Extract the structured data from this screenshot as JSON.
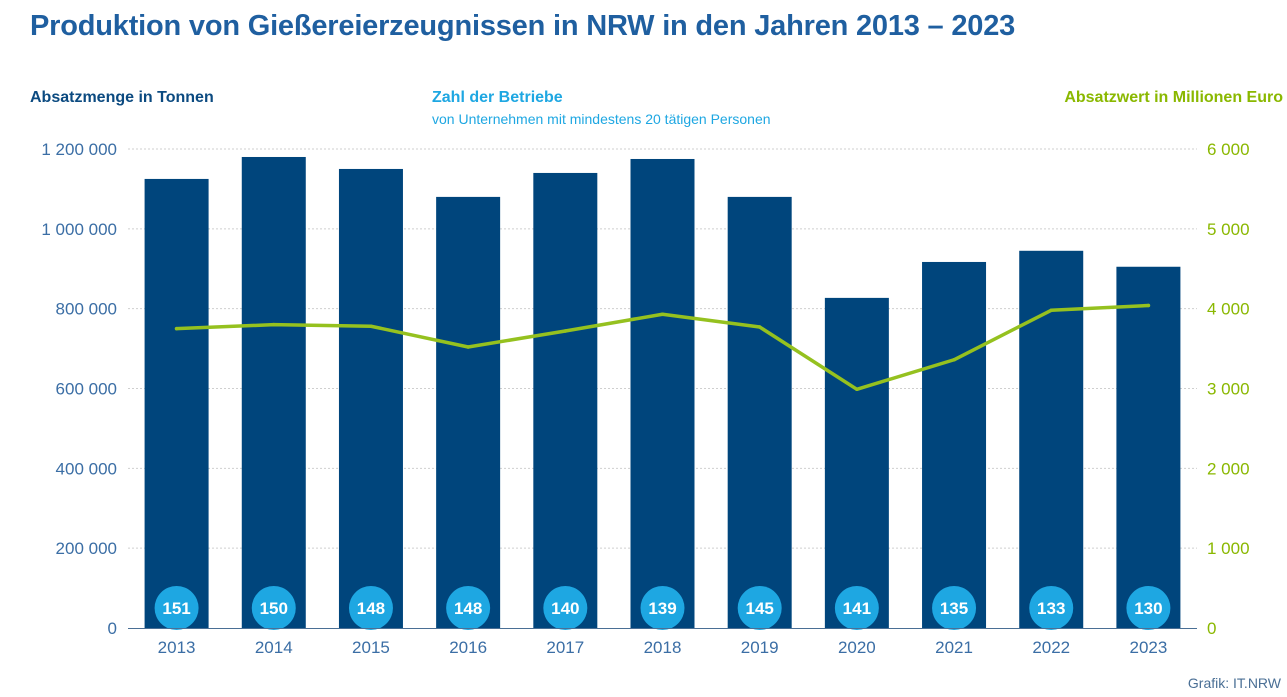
{
  "title": "Produktion von Gießereierzeugnissen in NRW in den Jahren 2013 – 2023",
  "legend": {
    "left": "Absatzmenge in Tonnen",
    "middle": "Zahl der Betriebe",
    "middle_sub": "von Unternehmen mit mindestens 20 tätigen Personen",
    "right": "Absatzwert in Millionen Euro"
  },
  "credit": "Grafik: IT.NRW",
  "colors": {
    "bar": "#00457c",
    "line": "#95c11f",
    "badge": "#1ea7e2",
    "grid": "#cfcfcf"
  },
  "chart_data": {
    "type": "bar",
    "categories": [
      "2013",
      "2014",
      "2015",
      "2016",
      "2017",
      "2018",
      "2019",
      "2020",
      "2021",
      "2022",
      "2023"
    ],
    "series": [
      {
        "name": "Absatzmenge in Tonnen",
        "type": "bar",
        "axis": "left",
        "values": [
          1125000,
          1180000,
          1150000,
          1080000,
          1140000,
          1175000,
          1080000,
          827000,
          917000,
          945000,
          905000
        ]
      },
      {
        "name": "Absatzwert in Millionen Euro",
        "type": "line",
        "axis": "right",
        "values": [
          3750,
          3800,
          3780,
          3520,
          3720,
          3930,
          3770,
          2990,
          3360,
          3980,
          4040
        ]
      },
      {
        "name": "Zahl der Betriebe",
        "type": "label",
        "values": [
          151,
          150,
          148,
          148,
          140,
          139,
          145,
          141,
          135,
          133,
          130
        ]
      }
    ],
    "y_left": {
      "ylim": [
        0,
        1200000
      ],
      "ticks": [
        0,
        200000,
        400000,
        600000,
        800000,
        1000000,
        1200000
      ],
      "tick_labels": [
        "0",
        "200 000",
        "400 000",
        "600 000",
        "800 000",
        "1 000 000",
        "1 200 000"
      ]
    },
    "y_right": {
      "ylim": [
        0,
        6000
      ],
      "ticks": [
        0,
        1000,
        2000,
        3000,
        4000,
        5000,
        6000
      ],
      "tick_labels": [
        "0",
        "1 000",
        "2 000",
        "3 000",
        "4 000",
        "5 000",
        "6 000"
      ]
    },
    "grid": true
  }
}
